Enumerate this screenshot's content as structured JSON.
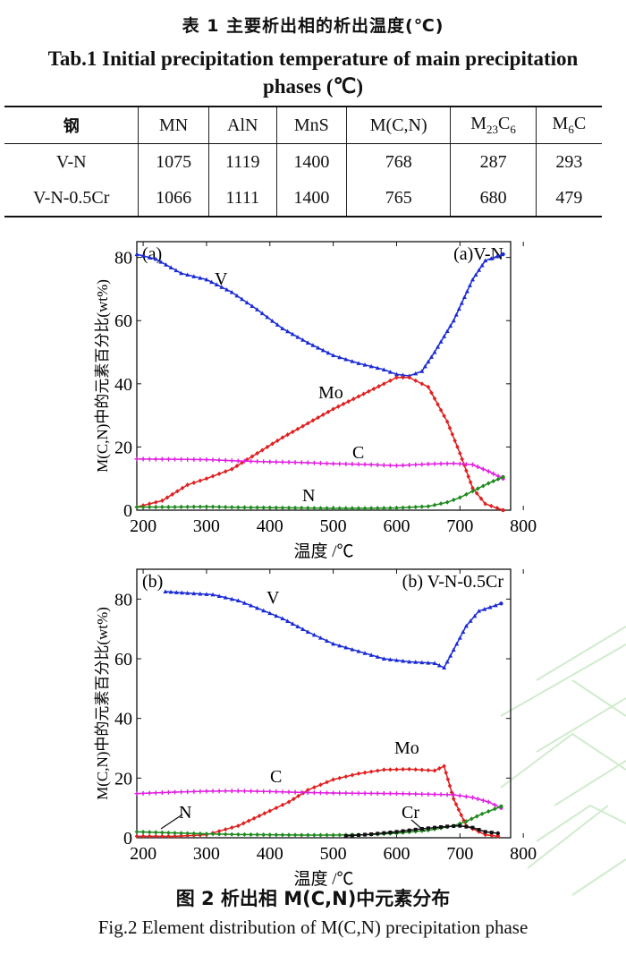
{
  "table": {
    "title_cn": "表 1  主要析出相的析出温度(℃)",
    "title_en": "Tab.1  Initial precipitation temperature of main precipitation phases (℃)",
    "headers": [
      "钢",
      "MN",
      "AlN",
      "MnS",
      "M(C,N)",
      "M23C6",
      "M6C"
    ],
    "rows": [
      [
        "V-N",
        "1075",
        "1119",
        "1400",
        "768",
        "287",
        "293"
      ],
      [
        "V-N-0.5Cr",
        "1066",
        "1111",
        "1400",
        "765",
        "680",
        "479"
      ]
    ]
  },
  "chart_data": [
    {
      "type": "line",
      "panel_label": "(a)",
      "title": "(a)V-N",
      "xlabel": "温度 /℃",
      "ylabel": "M(C,N)中的元素百分比(wt%)",
      "xlim": [
        190,
        780
      ],
      "ylim": [
        0,
        85
      ],
      "xticks": [
        200,
        300,
        400,
        500,
        600,
        700,
        800
      ],
      "yticks": [
        0,
        20,
        40,
        60,
        80
      ],
      "series": [
        {
          "name": "V",
          "color": "#1a2bd6",
          "marker": "triangle",
          "x": [
            190,
            220,
            260,
            300,
            340,
            380,
            420,
            460,
            500,
            540,
            580,
            600,
            620,
            640,
            660,
            690,
            720,
            740,
            768
          ],
          "y": [
            81,
            79.5,
            75,
            73,
            69,
            63.5,
            57.5,
            53,
            49,
            46.5,
            44.5,
            43,
            42.5,
            44,
            50,
            60,
            73,
            79,
            81
          ]
        },
        {
          "name": "Mo",
          "color": "#e02020",
          "marker": "diamond",
          "x": [
            190,
            230,
            270,
            300,
            340,
            380,
            420,
            460,
            500,
            540,
            580,
            600,
            620,
            650,
            680,
            700,
            720,
            740,
            768
          ],
          "y": [
            1,
            3,
            8,
            10,
            13,
            18,
            23,
            27.5,
            32,
            36,
            40,
            42,
            42,
            39,
            28,
            18,
            7,
            2,
            0
          ]
        },
        {
          "name": "C",
          "color": "#e020e0",
          "marker": "star",
          "x": [
            190,
            250,
            300,
            350,
            400,
            450,
            500,
            550,
            600,
            650,
            690,
            720,
            745,
            768
          ],
          "y": [
            16.2,
            16.1,
            16,
            15.6,
            15.3,
            15.1,
            14.7,
            14.5,
            14.1,
            14.6,
            14.8,
            14.4,
            12.3,
            10
          ]
        },
        {
          "name": "N",
          "color": "#1f8a1f",
          "marker": "diamond",
          "x": [
            190,
            250,
            300,
            350,
            400,
            450,
            500,
            550,
            600,
            650,
            680,
            700,
            720,
            745,
            768
          ],
          "y": [
            1,
            1,
            1.1,
            0.9,
            0.8,
            0.7,
            0.6,
            0.6,
            0.7,
            1.2,
            2.5,
            4,
            6,
            8.5,
            10.5
          ]
        }
      ],
      "annotations": [
        "V",
        "Mo",
        "C",
        "N"
      ]
    },
    {
      "type": "line",
      "panel_label": "(b)",
      "title": "(b) V-N-0.5Cr",
      "xlabel": "温度 /℃",
      "ylabel": "M(C,N)中的元素百分比(wt%)",
      "xlim": [
        190,
        780
      ],
      "ylim": [
        0,
        90
      ],
      "xticks": [
        200,
        300,
        400,
        500,
        600,
        700,
        800
      ],
      "yticks": [
        0,
        20,
        40,
        60,
        80
      ],
      "series": [
        {
          "name": "V",
          "color": "#1a2bd6",
          "marker": "triangle",
          "x": [
            235,
            270,
            310,
            350,
            380,
            420,
            460,
            500,
            540,
            580,
            620,
            660,
            675,
            690,
            710,
            730,
            765
          ],
          "y": [
            82.5,
            82,
            81.5,
            79.5,
            77,
            73.5,
            69,
            65,
            62.5,
            60,
            59,
            58.5,
            57,
            63,
            71,
            76,
            78.5
          ]
        },
        {
          "name": "Mo",
          "color": "#e02020",
          "marker": "diamond",
          "x": [
            190,
            250,
            300,
            350,
            400,
            430,
            460,
            500,
            540,
            580,
            620,
            660,
            675,
            690,
            710,
            740,
            760
          ],
          "y": [
            0.5,
            0.5,
            1,
            4,
            9,
            12,
            16,
            19.5,
            21.5,
            22.8,
            23,
            22.5,
            24,
            13,
            4,
            1,
            0.5
          ]
        },
        {
          "name": "C",
          "color": "#e020e0",
          "marker": "star",
          "x": [
            190,
            250,
            300,
            350,
            400,
            450,
            500,
            550,
            600,
            650,
            690,
            720,
            745,
            765
          ],
          "y": [
            14.8,
            15.3,
            15.6,
            15.7,
            15.5,
            15.2,
            15,
            14.9,
            14.8,
            14.6,
            14.4,
            13.5,
            12,
            10
          ]
        },
        {
          "name": "N",
          "color": "#1f8a1f",
          "marker": "diamond",
          "x": [
            190,
            250,
            300,
            350,
            400,
            450,
            500,
            550,
            600,
            650,
            690,
            710,
            735,
            765
          ],
          "y": [
            2,
            1.6,
            1.3,
            1.1,
            1,
            0.9,
            0.9,
            1,
            1.5,
            2.5,
            4,
            5.5,
            8,
            10.5
          ]
        },
        {
          "name": "Cr",
          "color": "#111111",
          "marker": "square",
          "x": [
            520,
            560,
            600,
            640,
            680,
            700,
            720,
            740,
            760
          ],
          "y": [
            0.6,
            1.2,
            2,
            3,
            3.8,
            4,
            3.4,
            2,
            1.5
          ]
        }
      ],
      "annotations": [
        "V",
        "Mo",
        "C",
        "N",
        "Cr"
      ]
    }
  ],
  "figure": {
    "caption_cn": "图 2  析出相 M(C,N)中元素分布",
    "caption_en": "Fig.2  Element distribution of M(C,N) precipitation phase"
  }
}
